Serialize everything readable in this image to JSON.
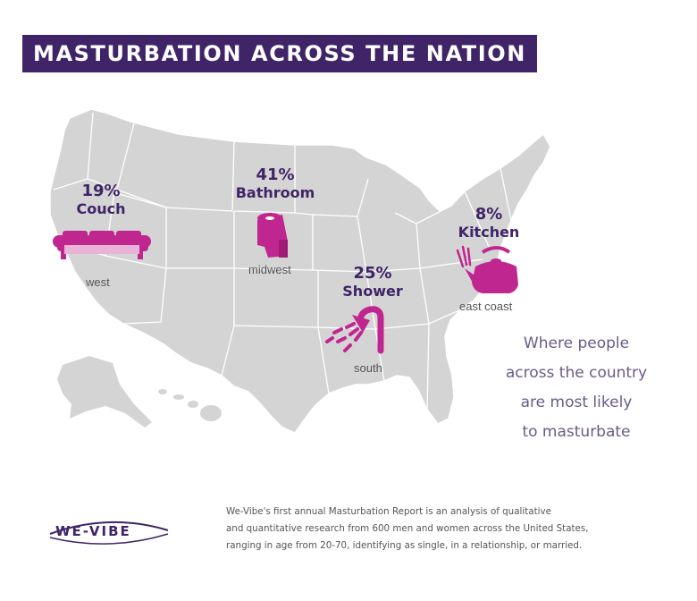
{
  "header": {
    "title": "MASTURBATION ACROSS THE NATION"
  },
  "stats": {
    "west": {
      "percent": "19%",
      "place": "Couch",
      "region": "west",
      "icon": "couch-icon"
    },
    "midwest": {
      "percent": "41%",
      "place": "Bathroom",
      "region": "midwest",
      "icon": "toilet-paper-icon"
    },
    "south": {
      "percent": "25%",
      "place": "Shower",
      "region": "south",
      "icon": "shower-icon"
    },
    "east_coast": {
      "percent": "8%",
      "place": "Kitchen",
      "region": "east coast",
      "icon": "kettle-icon"
    }
  },
  "side_note": {
    "lines": [
      "Where people",
      "across the country",
      "are most likely",
      "to masturbate"
    ]
  },
  "footer": {
    "logo": "WE-VIBE",
    "lines": [
      "We-Vibe's first annual Masturbation Report is an analysis of qualitative",
      "and quantitative research from 600 men and women across the United States,",
      "ranging in age from 20-70, identifying as single, in a relationship, or married."
    ]
  },
  "colors": {
    "brand_purple": "#3f2467",
    "icon_magenta": "#c0268f",
    "map_gray": "#d4d4d4",
    "text_gray": "#555555"
  }
}
